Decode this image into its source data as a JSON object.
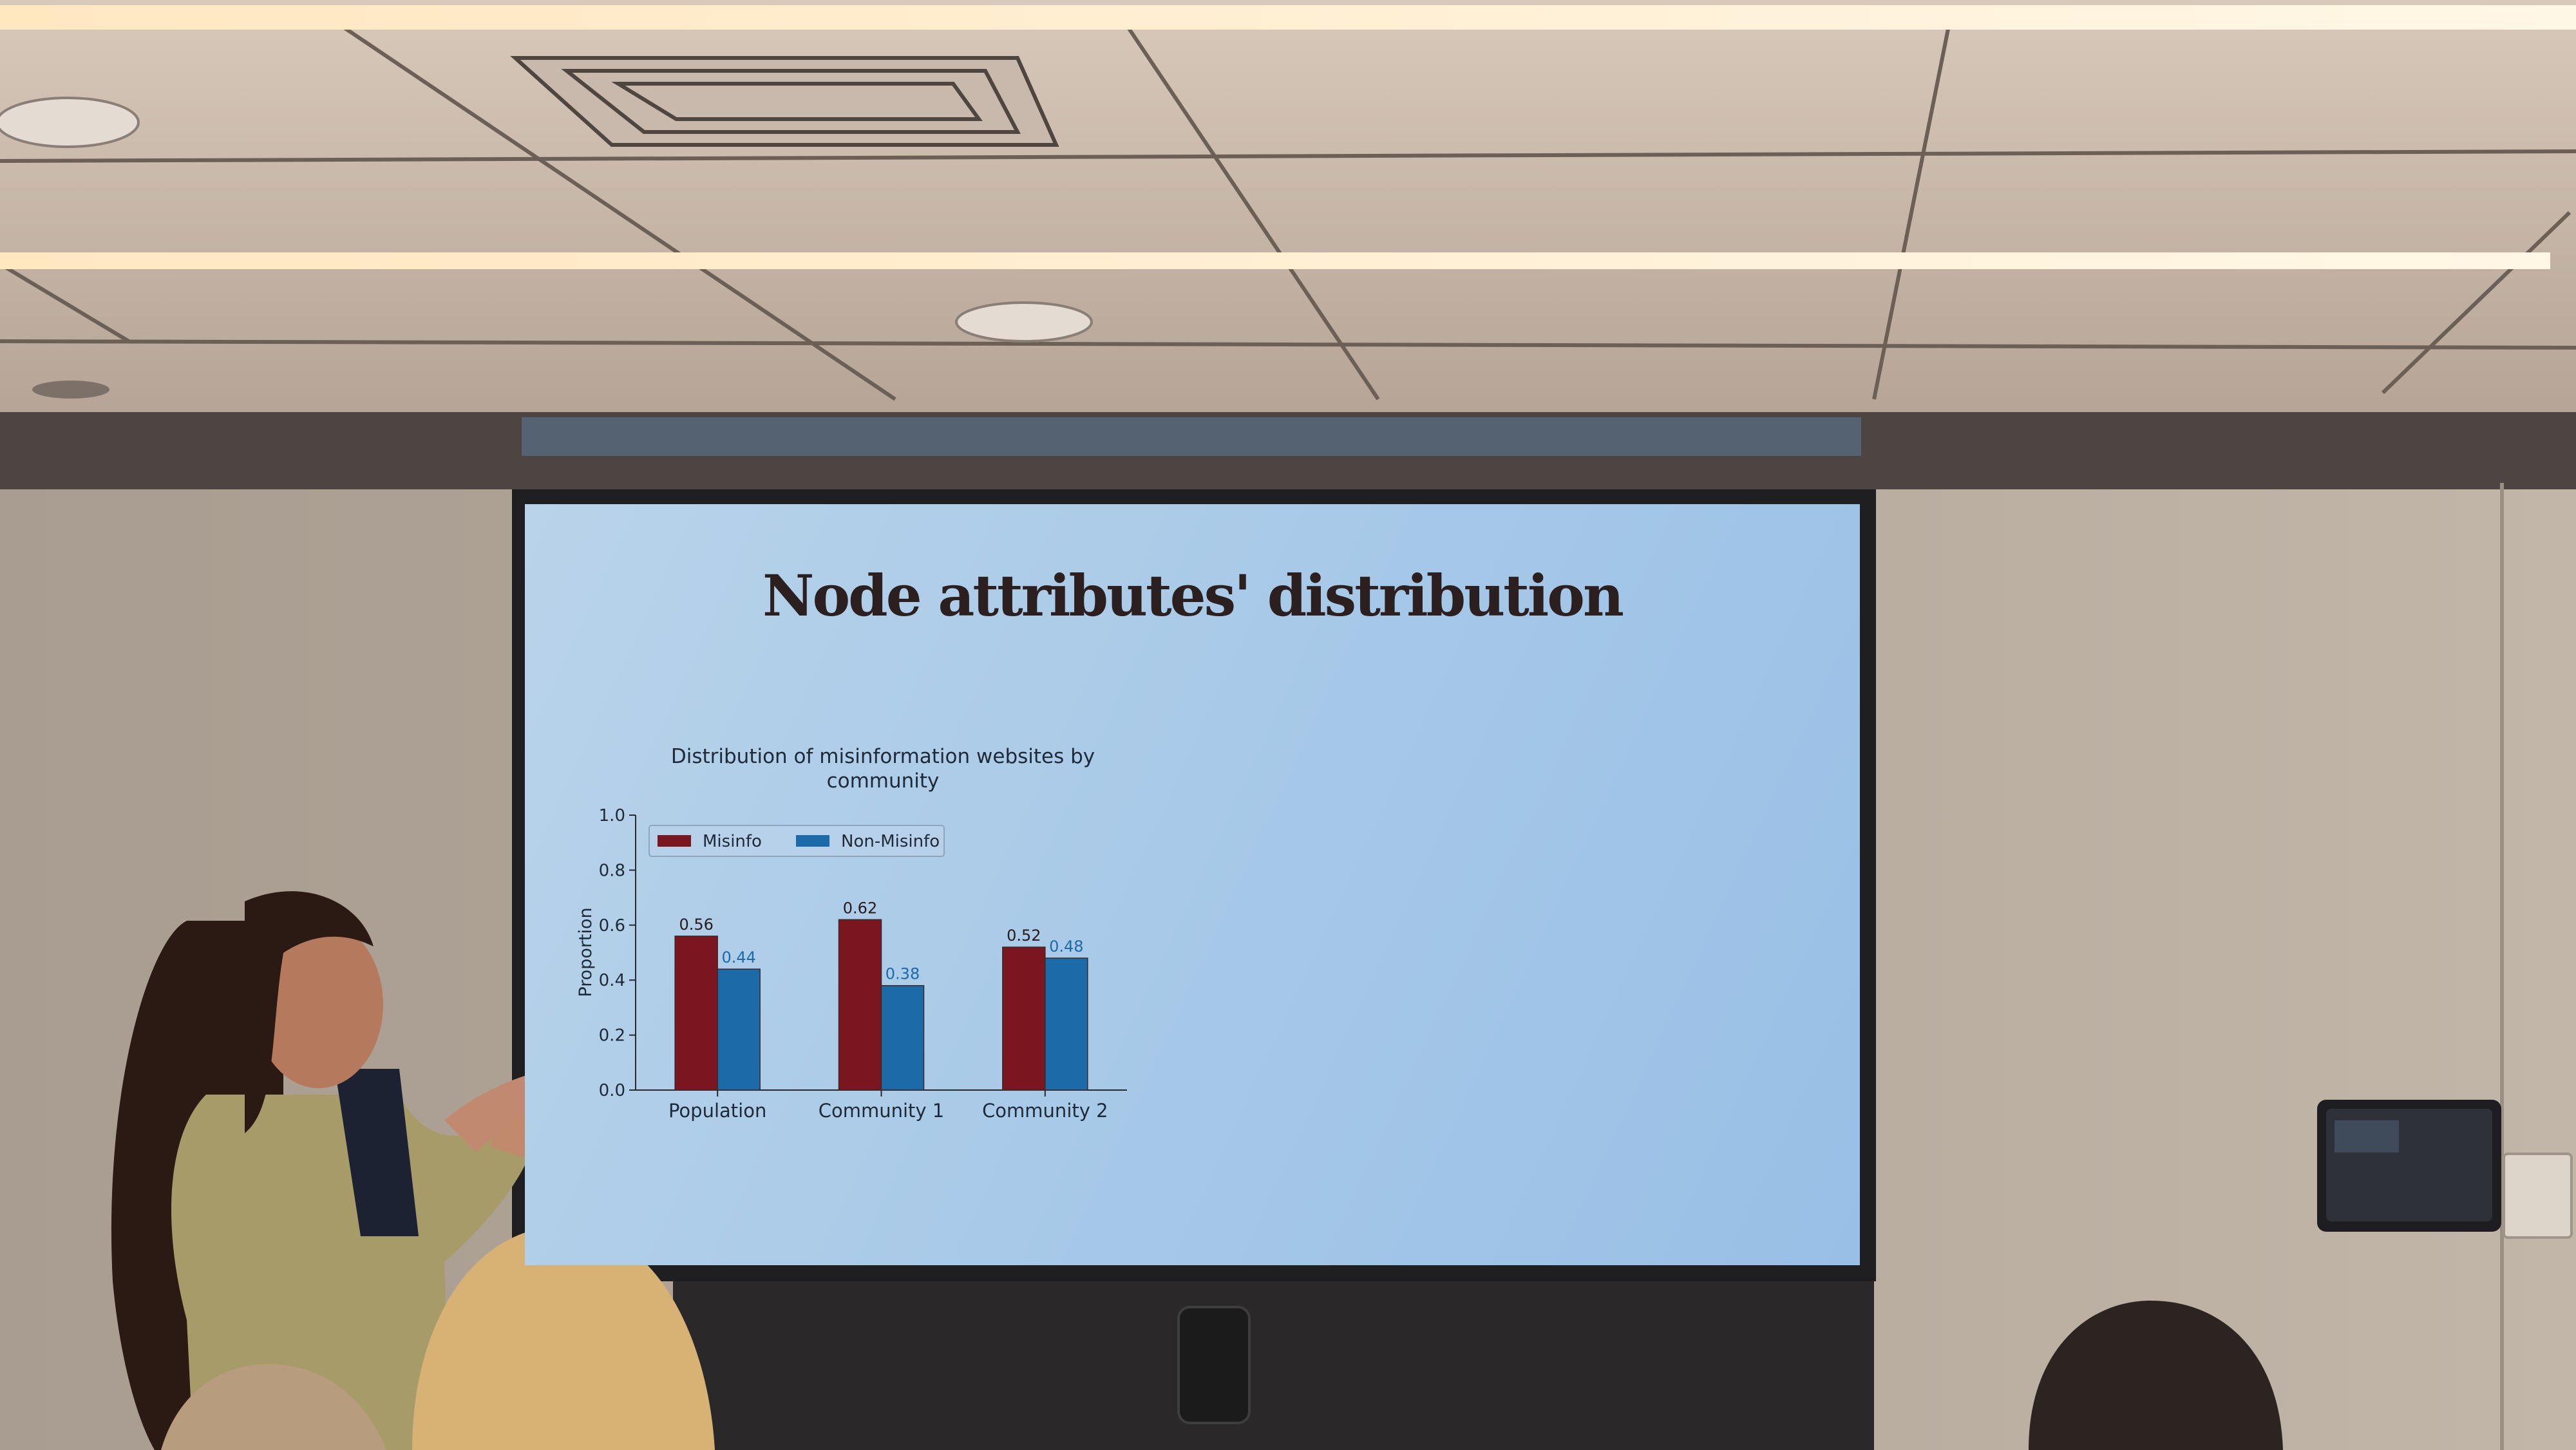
{
  "slide": {
    "title": "Node attributes' distribution"
  },
  "chart_data": {
    "type": "bar",
    "title": "Distribution of misinformation websites by community",
    "ylabel": "Proportion",
    "xlabel": "",
    "ylim": [
      0,
      1.0
    ],
    "yticks": [
      "0.0",
      "0.2",
      "0.4",
      "0.6",
      "0.8",
      "1.0"
    ],
    "categories": [
      "Population",
      "Community 1",
      "Community 2"
    ],
    "series": [
      {
        "name": "Misinfo",
        "values": [
          0.56,
          0.62,
          0.52
        ],
        "labels": [
          "0.56",
          "0.62",
          "0.52"
        ],
        "color": "#7a1620"
      },
      {
        "name": "Non-Misinfo",
        "values": [
          0.44,
          0.38,
          0.48
        ],
        "labels": [
          "0.44",
          "0.38",
          "0.48"
        ],
        "color": "#1d6aa8"
      }
    ],
    "legend": "top-left",
    "grid": false
  }
}
